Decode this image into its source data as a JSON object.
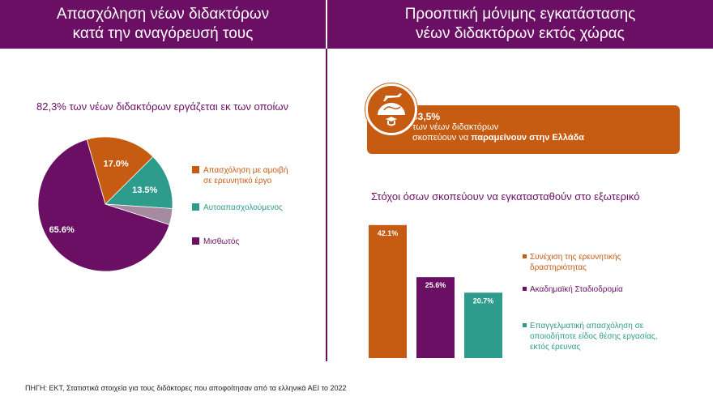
{
  "left_panel": {
    "title_line1": "Απασχόληση νέων διδακτόρων",
    "title_line2": "κατά την αναγόρευσή τους",
    "subtitle": "82,3% των νέων διδακτόρων εργάζεται εκ των οποίων"
  },
  "right_panel": {
    "title_line1": "Προοπτική μόνιμης εγκατάστασης",
    "title_line2": "νέων διδακτόρων εκτός χώρας",
    "banner_value": "83,5%",
    "banner_line1": "των νέων διδακτόρων",
    "banner_line2_plain": "σκοπεύουν να ",
    "banner_line2_bold": "παραμείνουν στην Ελλάδα",
    "banner_icon": "plane-globe-graduation-cap-icon",
    "subtitle": "Στόχοι όσων σκοπεύουν να εγκατασταθούν στο εξωτερικό"
  },
  "source": "ΠΗΓΗ: ΕΚΤ, Στατιστικά στοιχεία για τους διδάκτορες που αποφοίτησαν από τα ελληνικά ΑΕΙ το 2022",
  "colors": {
    "purple": "#6a0f64",
    "orange": "#c65b12",
    "teal": "#2e9c8c",
    "grey": "#a58aa0"
  },
  "chart_data": [
    {
      "type": "pie",
      "slices": [
        {
          "name": "Απασχόληση με αμοιβή σε ερευνητικό έργο",
          "value": 17.0,
          "label": "17.0%",
          "color": "#c65b12"
        },
        {
          "name": "Αυτοαπασχολούμενος",
          "value": 13.5,
          "label": "13.5%",
          "color": "#2e9c8c"
        },
        {
          "name": "",
          "value": 3.9,
          "label": "",
          "color": "#a58aa0"
        },
        {
          "name": "Μισθωτός",
          "value": 65.6,
          "label": "65.6%",
          "color": "#6a0f64"
        }
      ],
      "legend": [
        {
          "line1": "Απασχόληση με αμοιβή",
          "line2": "σε ερευνητικό έργο",
          "color": "#c65b12"
        },
        {
          "line1": "Αυτοαπασχολούμενος",
          "line2": "",
          "color": "#2e9c8c"
        },
        {
          "line1": "Μισθωτός",
          "line2": "",
          "color": "#6a0f64"
        }
      ],
      "legend_placement": "right"
    },
    {
      "type": "bar",
      "categories": [
        "Συνέχιση της ερευνητικής δραστηριότητας",
        "Ακαδημαϊκή Σταδιοδρομία",
        "Επαγγελματική απασχόληση σε οποιοδήποτε είδος θέσης εργασίας, εκτός έρευνας"
      ],
      "values": [
        42.1,
        25.6,
        20.7
      ],
      "labels": [
        "42.1%",
        "25.6%",
        "20.7%"
      ],
      "colors": [
        "#c65b12",
        "#6a0f64",
        "#2e9c8c"
      ],
      "legend": [
        {
          "line1": "Συνέχιση της ερευνητικής",
          "line2": "δραστηριότητας",
          "line3": "",
          "color": "#c65b12"
        },
        {
          "line1": "Ακαδημαϊκή Σταδιοδρομία",
          "line2": "",
          "line3": "",
          "color": "#6a0f64"
        },
        {
          "line1": "Επαγγελματική απασχόληση σε",
          "line2": "οποιοδήποτε είδος θέσης εργασίας,",
          "line3": "εκτός έρευνας",
          "color": "#2e9c8c"
        }
      ],
      "legend_placement": "right",
      "grid": false
    }
  ]
}
